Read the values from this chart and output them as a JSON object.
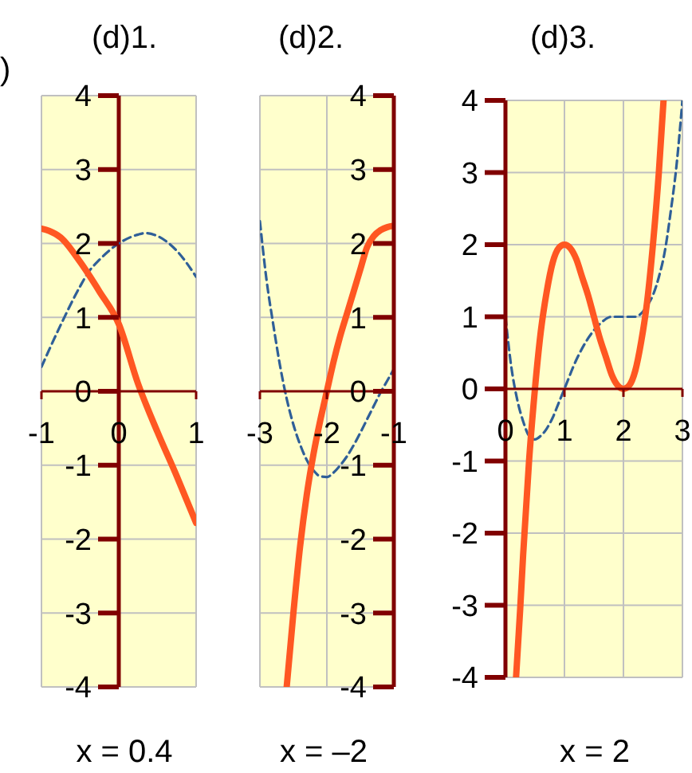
{
  "chart_data": [
    {
      "type": "line",
      "title": "(d)1.",
      "xlabel": "x = 0.4",
      "annotations": [
        ")"
      ],
      "xlim": [
        -1,
        1
      ],
      "xticks": [
        -1,
        0,
        1
      ],
      "ylim": [
        -4,
        4
      ],
      "yticks": [
        -4,
        -3,
        -2,
        -1,
        0,
        1,
        2,
        3,
        4
      ],
      "grid": true,
      "marker": "none",
      "ref_lines": [
        {
          "axis": "x",
          "value": 0,
          "color": "#800000"
        }
      ],
      "series": [
        {
          "color": "#2f5f98",
          "line_style": "dashed",
          "x": [
            -1,
            -0.75,
            -0.5,
            -0.4,
            -0.25,
            0,
            0.25,
            0.35,
            0.5,
            0.75,
            1
          ],
          "values": [
            0.33,
            0.9,
            1.42,
            1.6,
            1.78,
            2.0,
            2.12,
            2.14,
            2.1,
            1.9,
            1.55
          ]
        },
        {
          "color": "#ff5722",
          "line_style": "solid",
          "x": [
            -1,
            -0.9,
            -0.75,
            -0.5,
            -0.25,
            0,
            0.25,
            0.5,
            0.75,
            1
          ],
          "values": [
            2.2,
            2.17,
            2.08,
            1.75,
            1.35,
            0.91,
            0.1,
            -0.55,
            -1.15,
            -1.78
          ]
        }
      ]
    },
    {
      "type": "line",
      "title": "(d)2.",
      "xlabel": "x = –2",
      "xlim": [
        -3,
        -1
      ],
      "xticks": [
        -3,
        -2,
        -1
      ],
      "ylim": [
        -4,
        4
      ],
      "yticks": [
        -4,
        -3,
        -2,
        -1,
        0,
        1,
        2,
        3,
        4
      ],
      "grid": true,
      "marker": "none",
      "series": [
        {
          "color": "#2f5f98",
          "line_style": "dashed",
          "x": [
            -3,
            -2.9,
            -2.8,
            -2.7,
            -2.6,
            -2.5,
            -2.4,
            -2.3,
            -2.2,
            -2.1,
            -2,
            -1.9,
            -1.8,
            -1.7,
            -1.6,
            -1.5,
            -1.4,
            -1.3,
            -1.2,
            -1.1,
            -1
          ],
          "values": [
            2.3,
            1.5,
            0.9,
            0.35,
            -0.1,
            -0.45,
            -0.72,
            -0.93,
            -1.07,
            -1.15,
            -1.16,
            -1.1,
            -1.0,
            -0.88,
            -0.73,
            -0.56,
            -0.38,
            -0.2,
            -0.02,
            0.14,
            0.3
          ]
        },
        {
          "color": "#ff5722",
          "line_style": "solid",
          "x": [
            -2.6,
            -2.5,
            -2.4,
            -2.3,
            -2.2,
            -2.1,
            -2,
            -1.9,
            -1.8,
            -1.7,
            -1.6,
            -1.5,
            -1.4,
            -1.3,
            -1.2,
            -1.1,
            -1
          ],
          "values": [
            -4,
            -3.0,
            -2.1,
            -1.4,
            -0.85,
            -0.4,
            0,
            0.4,
            0.75,
            1.05,
            1.35,
            1.65,
            1.95,
            2.1,
            2.18,
            2.22,
            2.24
          ]
        }
      ]
    },
    {
      "type": "line",
      "title": "(d)3.",
      "xlabel": "x = 2",
      "xlim": [
        0,
        3
      ],
      "xticks": [
        0,
        1,
        2,
        3
      ],
      "ylim": [
        -4,
        4
      ],
      "yticks": [
        -4,
        -3,
        -2,
        -1,
        0,
        1,
        2,
        3,
        4
      ],
      "grid": true,
      "marker": "none",
      "series": [
        {
          "color": "#2f5f98",
          "line_style": "dashed",
          "x": [
            0,
            0.1,
            0.2,
            0.3,
            0.4,
            0.5,
            0.6,
            0.7,
            0.8,
            0.9,
            1,
            1.2,
            1.4,
            1.6,
            1.8,
            2,
            2.2,
            2.4,
            2.5,
            2.6,
            2.7,
            2.8,
            2.9,
            3
          ],
          "values": [
            1.0,
            0.3,
            -0.15,
            -0.45,
            -0.65,
            -0.7,
            -0.65,
            -0.55,
            -0.4,
            -0.2,
            0,
            0.4,
            0.7,
            0.9,
            1.0,
            1.0,
            1.0,
            1.15,
            1.3,
            1.55,
            1.9,
            2.45,
            3.1,
            4.0
          ]
        },
        {
          "color": "#ff5722",
          "line_style": "solid",
          "x": [
            0.18,
            0.25,
            0.3,
            0.4,
            0.5,
            0.6,
            0.7,
            0.8,
            0.9,
            1,
            1.1,
            1.2,
            1.3,
            1.4,
            1.5,
            1.6,
            1.7,
            1.8,
            1.9,
            2,
            2.1,
            2.2,
            2.3,
            2.4,
            2.5,
            2.6,
            2.68
          ],
          "values": [
            -4,
            -3.05,
            -2.3,
            -1.0,
            0,
            0.8,
            1.35,
            1.75,
            1.95,
            2.0,
            1.95,
            1.8,
            1.55,
            1.3,
            1.0,
            0.7,
            0.45,
            0.2,
            0.05,
            0,
            0.05,
            0.25,
            0.65,
            1.2,
            2.0,
            3.0,
            4.0
          ]
        }
      ]
    }
  ]
}
